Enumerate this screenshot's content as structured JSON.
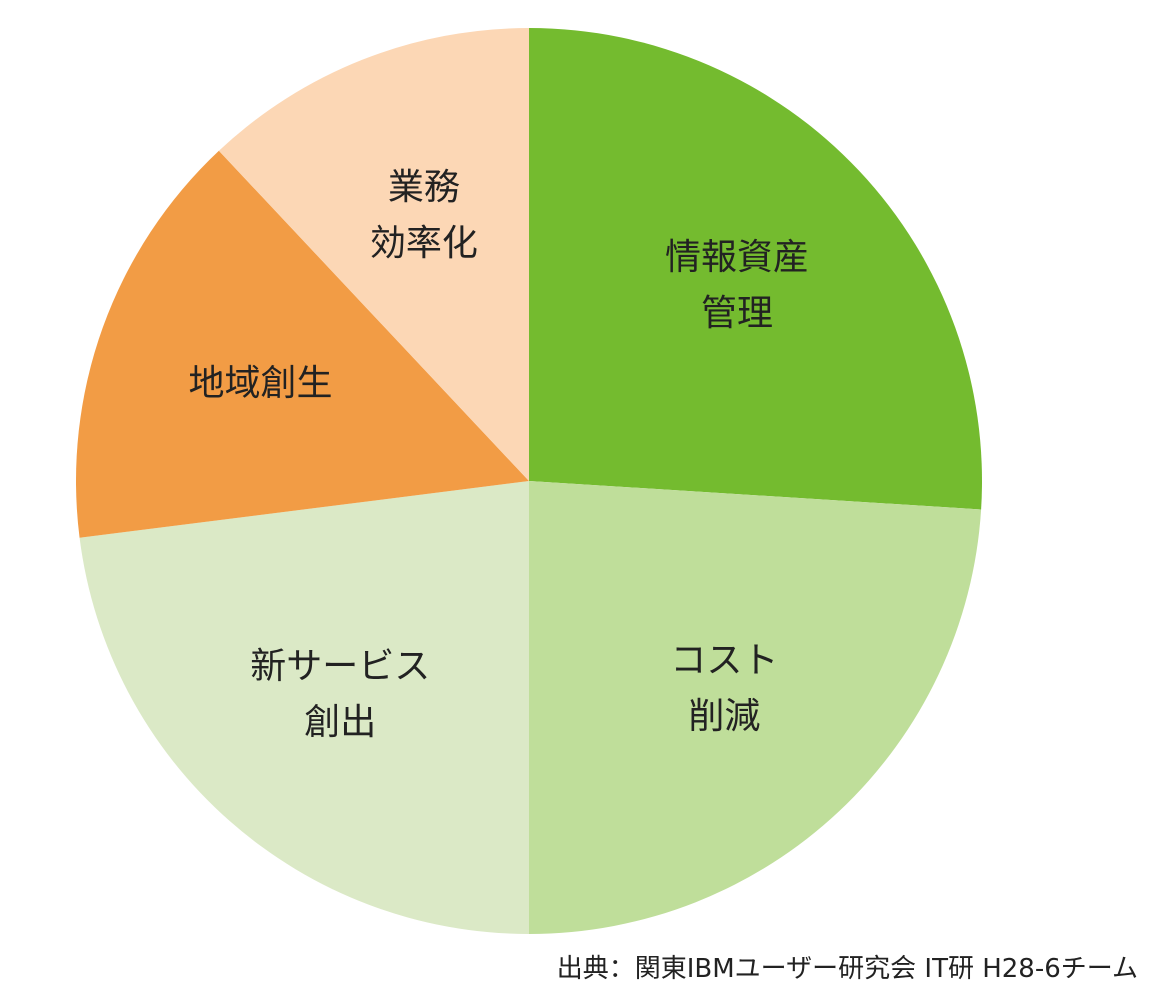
{
  "chart_data": {
    "type": "pie",
    "categories": [
      "情報資産\n管理",
      "コスト\n削減",
      "新サービス\n創出",
      "地域創生",
      "業務\n効率化"
    ],
    "values": [
      26,
      24,
      23,
      15,
      12
    ],
    "colors": [
      "#74bb2f",
      "#bfde9a",
      "#dbe9c6",
      "#f29c45",
      "#fcd7b5"
    ],
    "source": "出典：関東IBMユーザー研究会 IT研 H28-6チーム"
  }
}
